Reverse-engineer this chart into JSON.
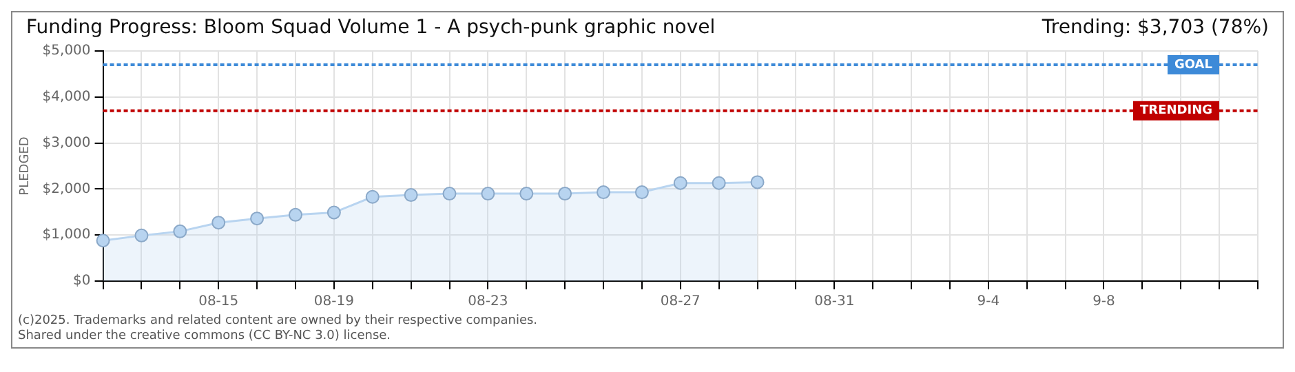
{
  "chart_data": {
    "type": "area",
    "title": "Funding Progress: Bloom Squad Volume 1 - A psych-punk graphic novel",
    "subtitle": "Trending: $3,703 (78%)",
    "ylabel": "PLEDGED",
    "categories": [
      null,
      null,
      null,
      "08-15",
      null,
      null,
      "08-19",
      null,
      null,
      null,
      "08-23",
      null,
      null,
      null,
      null,
      "08-27",
      null,
      null,
      null,
      "08-31",
      null,
      null,
      null,
      "9-4",
      null,
      null,
      "9-8",
      null,
      null,
      null,
      null
    ],
    "series": [
      {
        "color": "#b8d4f0",
        "values": [
          880,
          990,
          1080,
          1270,
          1360,
          1440,
          1490,
          1830,
          1870,
          1900,
          1900,
          1900,
          1900,
          1930,
          1930,
          2130,
          2130,
          2150,
          null,
          null,
          null,
          null,
          null,
          null,
          null,
          null,
          null,
          null,
          null,
          null,
          null
        ]
      }
    ],
    "ylim": [
      0,
      5000
    ],
    "yticks": [
      {
        "value": 0,
        "label": "$0"
      },
      {
        "value": 1000,
        "label": "$1,000"
      },
      {
        "value": 2000,
        "label": "$2,000"
      },
      {
        "value": 3000,
        "label": "$3,000"
      },
      {
        "value": 4000,
        "label": "$4,000"
      },
      {
        "value": 5000,
        "label": "$5,000"
      }
    ],
    "grid": true,
    "marker": "circle",
    "legend": false,
    "ref_lines": [
      {
        "axis": "y",
        "value": 4700,
        "label": "GOAL",
        "color": "#3d8ad8",
        "line_style": "dotted"
      },
      {
        "axis": "y",
        "value": 3703,
        "label": "TRENDING",
        "color": "#c00000",
        "line_style": "dotted"
      }
    ],
    "annotations": [
      "(c)2025. Trademarks and related content are owned by their respective companies.",
      "Shared under the creative commons (CC BY-NC 3.0) license."
    ]
  }
}
